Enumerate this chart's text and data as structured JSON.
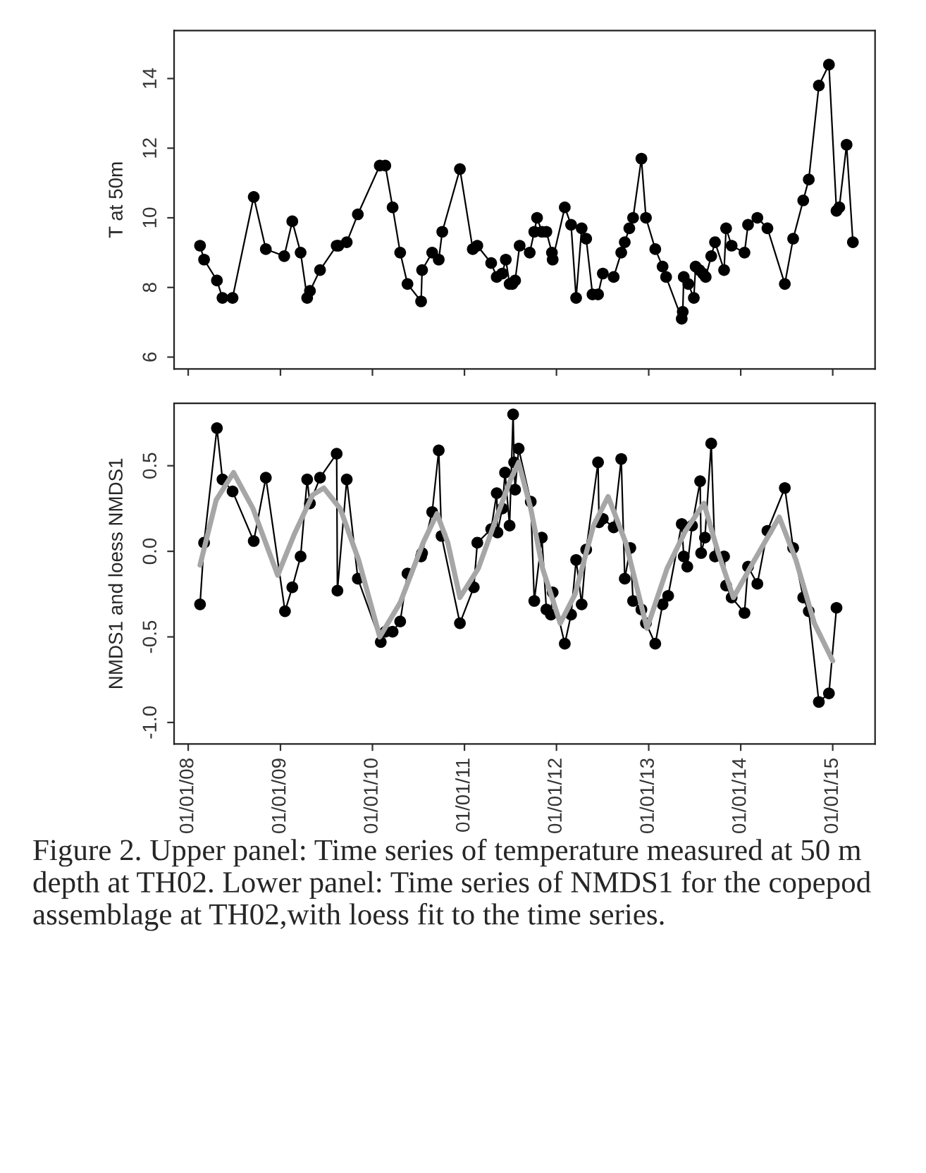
{
  "chart_data": [
    {
      "type": "line",
      "ylabel": "T at 50m",
      "marker": "circle",
      "xlim": [
        "2007-11-06",
        "2015-06-18"
      ],
      "ylim": [
        5.66,
        15.38
      ],
      "xticks": [
        {
          "value": "2008-01-01",
          "label": null
        },
        {
          "value": "2009-01-01",
          "label": null
        },
        {
          "value": "2010-01-01",
          "label": null
        },
        {
          "value": "2011-01-01",
          "label": null
        },
        {
          "value": "2012-01-01",
          "label": null
        },
        {
          "value": "2013-01-01",
          "label": null
        },
        {
          "value": "2014-01-01",
          "label": null
        },
        {
          "value": "2015-01-01",
          "label": null
        }
      ],
      "yticks": [
        6,
        8,
        10,
        12,
        14
      ],
      "tick_labels": "y",
      "series": [
        {
          "color": "#000000",
          "x": [
            "2008-02-17",
            "2008-03-04",
            "2008-04-24",
            "2008-05-16",
            "2008-06-25",
            "2008-09-17",
            "2008-11-04",
            "2009-01-16",
            "2009-02-17",
            "2009-03-22",
            "2009-04-17",
            "2009-04-28",
            "2009-06-07",
            "2009-08-12",
            "2009-08-19",
            "2009-09-21",
            "2009-11-04",
            "2010-01-30",
            "2010-02-21",
            "2010-03-22",
            "2010-04-21",
            "2010-05-20",
            "2010-07-13",
            "2010-07-17",
            "2010-08-26",
            "2010-09-21",
            "2010-10-05",
            "2010-12-14",
            "2011-02-03",
            "2011-02-21",
            "2011-04-17",
            "2011-05-09",
            "2011-05-31",
            "2011-06-14",
            "2011-06-29",
            "2011-07-10",
            "2011-07-21",
            "2011-08-08",
            "2011-09-17",
            "2011-10-05",
            "2011-10-16",
            "2011-11-04",
            "2011-11-22",
            "2011-12-14",
            "2011-12-17",
            "2012-02-03",
            "2012-02-28",
            "2012-03-19",
            "2012-04-10",
            "2012-04-28",
            "2012-05-23",
            "2012-06-14",
            "2012-07-03",
            "2012-08-15",
            "2012-09-14",
            "2012-09-28",
            "2012-10-16",
            "2012-10-31",
            "2012-12-03",
            "2012-12-21",
            "2013-01-27",
            "2013-02-25",
            "2013-03-11",
            "2013-05-12",
            "2013-05-16",
            "2013-05-20",
            "2013-06-07",
            "2013-06-29",
            "2013-07-06",
            "2013-07-21",
            "2013-08-04",
            "2013-08-15",
            "2013-09-06",
            "2013-09-21",
            "2013-10-27",
            "2013-11-04",
            "2013-11-26",
            "2014-01-16",
            "2014-01-30",
            "2014-03-08",
            "2014-04-17",
            "2014-06-25",
            "2014-07-28",
            "2014-09-06",
            "2014-09-28",
            "2014-11-07",
            "2014-12-17",
            "2015-01-16",
            "2015-01-27",
            "2015-02-25",
            "2015-03-22"
          ],
          "values": [
            9.2,
            8.8,
            8.2,
            7.7,
            7.7,
            10.6,
            9.1,
            8.9,
            9.9,
            9.0,
            7.7,
            7.9,
            8.5,
            9.2,
            9.2,
            9.3,
            10.1,
            11.5,
            11.5,
            10.3,
            9.0,
            8.1,
            7.6,
            8.5,
            9.0,
            8.8,
            9.6,
            11.4,
            9.1,
            9.2,
            8.7,
            8.3,
            8.4,
            8.8,
            8.1,
            8.1,
            8.2,
            9.2,
            9.0,
            9.6,
            10.0,
            9.6,
            9.6,
            9.0,
            8.8,
            10.3,
            9.8,
            7.7,
            9.7,
            9.4,
            7.8,
            7.8,
            8.4,
            8.3,
            9.0,
            9.3,
            9.7,
            10.0,
            11.7,
            10.0,
            9.1,
            8.6,
            8.3,
            7.1,
            7.3,
            8.3,
            8.1,
            7.7,
            8.6,
            8.5,
            8.4,
            8.3,
            8.9,
            9.3,
            8.5,
            9.7,
            9.2,
            9.0,
            9.8,
            10.0,
            9.7,
            8.1,
            9.4,
            10.5,
            11.1,
            13.8,
            14.4,
            10.2,
            10.3,
            12.1,
            9.3
          ]
        }
      ]
    },
    {
      "type": "line",
      "ylabel": "NMDS1 and loess NMDS1",
      "xlim": [
        "2007-11-06",
        "2015-06-18"
      ],
      "ylim": [
        -1.126,
        0.865
      ],
      "xticks": [
        {
          "value": "2008-01-01",
          "label": "01/01/08"
        },
        {
          "value": "2009-01-01",
          "label": "01/01/09"
        },
        {
          "value": "2010-01-01",
          "label": "01/01/10"
        },
        {
          "value": "2011-01-01",
          "label": "01/01/11"
        },
        {
          "value": "2012-01-01",
          "label": "01/01/12"
        },
        {
          "value": "2013-01-01",
          "label": "01/01/13"
        },
        {
          "value": "2014-01-01",
          "label": "01/01/14"
        },
        {
          "value": "2015-01-01",
          "label": "01/01/15"
        }
      ],
      "yticks": [
        {
          "value": -1.0,
          "label": "-1.0"
        },
        {
          "value": -0.5,
          "label": "-0.5"
        },
        {
          "value": 0.0,
          "label": "0.0"
        },
        {
          "value": 0.5,
          "label": "0.5"
        }
      ],
      "series": [
        {
          "color": "#000000",
          "marker": "circle",
          "x": [
            "2008-02-17",
            "2008-03-04",
            "2008-04-24",
            "2008-05-16",
            "2008-06-25",
            "2008-09-17",
            "2008-11-04",
            "2009-01-19",
            "2009-02-17",
            "2009-03-22",
            "2009-04-17",
            "2009-04-28",
            "2009-06-07",
            "2009-08-12",
            "2009-08-15",
            "2009-09-21",
            "2009-11-04",
            "2010-02-03",
            "2010-02-21",
            "2010-03-22",
            "2010-04-21",
            "2010-05-20",
            "2010-07-13",
            "2010-07-17",
            "2010-08-26",
            "2010-09-21",
            "2010-10-02",
            "2010-12-14",
            "2011-02-07",
            "2011-02-21",
            "2011-04-17",
            "2011-05-09",
            "2011-05-12",
            "2011-05-31",
            "2011-06-11",
            "2011-06-29",
            "2011-07-13",
            "2011-07-17",
            "2011-07-21",
            "2011-08-04",
            "2011-09-21",
            "2011-10-05",
            "2011-11-04",
            "2011-11-22",
            "2011-12-10",
            "2011-12-17",
            "2012-02-03",
            "2012-02-28",
            "2012-03-19",
            "2012-04-10",
            "2012-04-28",
            "2012-06-14",
            "2012-06-18",
            "2012-07-03",
            "2012-08-15",
            "2012-09-14",
            "2012-09-28",
            "2012-10-20",
            "2012-10-31",
            "2012-12-03",
            "2012-12-21",
            "2013-01-27",
            "2013-02-25",
            "2013-03-19",
            "2013-05-12",
            "2013-05-20",
            "2013-06-03",
            "2013-06-22",
            "2013-07-24",
            "2013-07-28",
            "2013-08-12",
            "2013-09-06",
            "2013-09-21",
            "2013-10-27",
            "2013-11-04",
            "2013-11-26",
            "2014-01-16",
            "2014-01-30",
            "2014-03-08",
            "2014-04-17",
            "2014-06-25",
            "2014-07-28",
            "2014-09-06",
            "2014-09-28",
            "2014-11-07",
            "2014-12-17",
            "2015-01-16"
          ],
          "values": [
            -0.31,
            0.05,
            0.72,
            0.42,
            0.35,
            0.06,
            0.43,
            -0.35,
            -0.21,
            -0.03,
            0.42,
            0.28,
            0.43,
            0.57,
            -0.23,
            0.42,
            -0.16,
            -0.53,
            -0.47,
            -0.47,
            -0.41,
            -0.13,
            -0.03,
            -0.01,
            0.23,
            0.59,
            0.09,
            -0.42,
            -0.21,
            0.05,
            0.13,
            0.34,
            0.11,
            0.25,
            0.46,
            0.15,
            0.8,
            0.52,
            0.36,
            0.6,
            0.29,
            -0.29,
            0.08,
            -0.34,
            -0.37,
            -0.24,
            -0.54,
            -0.37,
            -0.05,
            -0.31,
            0.01,
            0.52,
            0.17,
            0.19,
            0.14,
            0.54,
            -0.16,
            0.02,
            -0.29,
            -0.34,
            -0.42,
            -0.54,
            -0.31,
            -0.26,
            0.16,
            -0.03,
            -0.09,
            0.15,
            0.41,
            -0.01,
            0.08,
            0.63,
            -0.03,
            -0.03,
            -0.2,
            -0.27,
            -0.36,
            -0.09,
            -0.19,
            0.12,
            0.37,
            0.02,
            -0.27,
            -0.35,
            -0.88,
            -0.83,
            -0.33
          ]
        },
        {
          "color": "#a6a6a6",
          "marker": "none",
          "x": [
            "2008-02-17",
            "2008-04-21",
            "2008-06-29",
            "2008-09-14",
            "2008-12-21",
            "2009-02-25",
            "2009-05-09",
            "2009-06-22",
            "2009-08-26",
            "2009-11-07",
            "2010-01-30",
            "2010-04-21",
            "2010-07-21",
            "2010-09-14",
            "2010-10-27",
            "2010-12-14",
            "2011-02-25",
            "2011-05-09",
            "2011-07-03",
            "2011-08-04",
            "2011-09-21",
            "2011-11-07",
            "2012-01-16",
            "2012-03-15",
            "2012-05-27",
            "2012-07-24",
            "2012-10-02",
            "2012-12-25",
            "2013-03-15",
            "2013-05-27",
            "2013-08-08",
            "2013-10-02",
            "2013-12-03",
            "2014-02-25",
            "2014-06-03",
            "2014-08-08",
            "2014-10-20",
            "2015-01-01"
          ],
          "values": [
            -0.08,
            0.3,
            0.46,
            0.25,
            -0.14,
            0.1,
            0.33,
            0.37,
            0.25,
            -0.05,
            -0.5,
            -0.3,
            0.05,
            0.22,
            0.05,
            -0.27,
            -0.1,
            0.2,
            0.42,
            0.52,
            0.25,
            -0.1,
            -0.42,
            -0.25,
            0.15,
            0.32,
            0.05,
            -0.45,
            -0.1,
            0.12,
            0.28,
            0.0,
            -0.27,
            -0.05,
            0.2,
            -0.05,
            -0.42,
            -0.64
          ]
        }
      ],
      "annotations": [
        "Figure 2. Upper panel: Time series of temperature measured at 50 m depth at TH02. Lower panel: Time series of NMDS1 for the copepod assemblage at TH02,with loess fit to the time series."
      ]
    }
  ]
}
